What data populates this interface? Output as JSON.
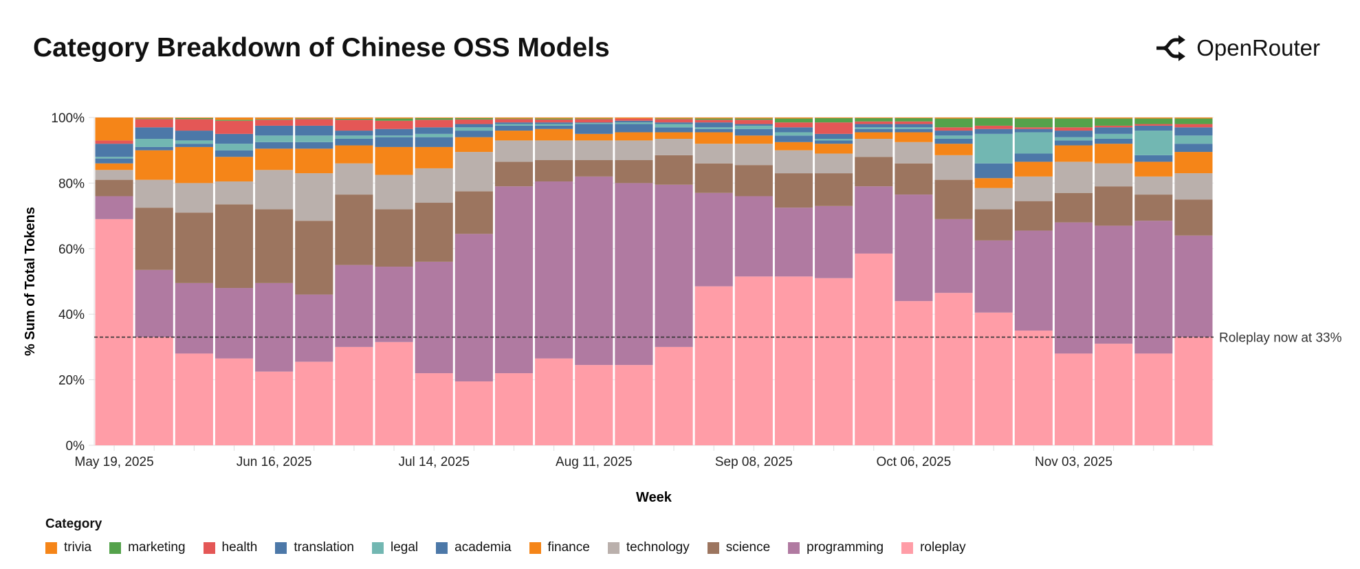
{
  "header": {
    "title": "Category Breakdown of Chinese OSS Models",
    "brand": "OpenRouter"
  },
  "chart_data": {
    "type": "bar",
    "stacked": "percent",
    "xlabel": "Week",
    "ylabel": "% Sum of Total Tokens",
    "ylim": [
      0,
      100
    ],
    "yticks": [
      "0%",
      "20%",
      "40%",
      "60%",
      "80%",
      "100%"
    ],
    "xtick_labels": [
      "May 19, 2025",
      "Jun 16, 2025",
      "Jul 14, 2025",
      "Aug 11, 2025",
      "Sep 08, 2025",
      "Oct 06, 2025",
      "Nov 03, 2025"
    ],
    "categories": [
      "2025-05-19",
      "2025-05-26",
      "2025-06-02",
      "2025-06-09",
      "2025-06-16",
      "2025-06-23",
      "2025-06-30",
      "2025-07-07",
      "2025-07-14",
      "2025-07-21",
      "2025-07-28",
      "2025-08-04",
      "2025-08-11",
      "2025-08-18",
      "2025-08-25",
      "2025-09-01",
      "2025-09-08",
      "2025-09-15",
      "2025-09-22",
      "2025-09-29",
      "2025-10-06",
      "2025-10-13",
      "2025-10-20",
      "2025-10-27",
      "2025-11-03",
      "2025-11-10",
      "2025-11-17",
      "2025-11-24"
    ],
    "legend_title": "Category",
    "legend_position": "bottom-left",
    "series": [
      {
        "name": "roleplay",
        "color": "#ff9da7",
        "values": [
          69,
          33,
          28,
          26.5,
          22.5,
          25.5,
          30,
          31.5,
          22,
          19.5,
          22,
          26.5,
          24.5,
          24.5,
          30,
          48.5,
          51.5,
          51.5,
          51,
          58.5,
          44,
          46.5,
          40.5,
          35,
          28,
          31,
          28,
          33
        ]
      },
      {
        "name": "programming",
        "color": "#b07aa1",
        "values": [
          7,
          20.5,
          21.5,
          21.5,
          27,
          20.5,
          25,
          23,
          34,
          45,
          57,
          54,
          57.5,
          55.5,
          49.5,
          28.5,
          24.5,
          21,
          22,
          20.5,
          32.5,
          22.5,
          22,
          30.5,
          40,
          36,
          40.5,
          31
        ]
      },
      {
        "name": "science",
        "color": "#9c755f",
        "values": [
          5,
          19,
          21.5,
          25.5,
          22.5,
          22.5,
          21.5,
          17.5,
          18,
          13,
          7.5,
          6.5,
          5,
          7,
          9,
          9,
          9.5,
          10.5,
          10,
          9,
          9.5,
          12,
          9.5,
          9,
          9,
          12,
          8,
          11
        ]
      },
      {
        "name": "technology",
        "color": "#bab0ac",
        "values": [
          3,
          8.5,
          9,
          7,
          12,
          14.5,
          9.5,
          10.5,
          10.5,
          12,
          6.5,
          6,
          6,
          6,
          5,
          6,
          6.5,
          7,
          6,
          5.5,
          6.5,
          7.5,
          6.5,
          7.5,
          9.5,
          7,
          5.5,
          8
        ]
      },
      {
        "name": "finance",
        "color": "#f58518",
        "values": [
          2,
          9,
          11,
          7.5,
          6.5,
          7.5,
          5.5,
          8.5,
          6.5,
          4.5,
          3,
          3.5,
          2,
          2.5,
          2,
          3.5,
          2.5,
          2.5,
          3,
          2,
          3,
          3.5,
          3,
          4.5,
          5,
          6,
          4.5,
          6.5
        ]
      },
      {
        "name": "academia",
        "color": "#4c78a8",
        "values": [
          1.5,
          1,
          1,
          2,
          2,
          2,
          2,
          3,
          3,
          2,
          1.5,
          1,
          3,
          2.5,
          1.5,
          1,
          2,
          2,
          1,
          1,
          1,
          1.5,
          4.5,
          2.5,
          1.5,
          1.5,
          2,
          2.5
        ]
      },
      {
        "name": "legal",
        "color": "#72b7b2",
        "values": [
          0.5,
          2.5,
          1,
          2,
          2,
          2,
          1,
          0.5,
          1,
          1,
          0.5,
          0.5,
          0.3,
          0.5,
          1,
          0.5,
          1,
          1,
          0.5,
          0.5,
          0.5,
          1,
          9,
          6.5,
          1,
          1.5,
          7.5,
          2.5
        ]
      },
      {
        "name": "translation",
        "color": "#4c78a8",
        "values": [
          4,
          3.5,
          3,
          3,
          3,
          3,
          1.5,
          2,
          2,
          1,
          0.5,
          0.5,
          0.2,
          0.5,
          0.5,
          1.5,
          0.5,
          1.5,
          1.5,
          1,
          1,
          1.5,
          1.5,
          1,
          2,
          2,
          1.5,
          2.5
        ]
      },
      {
        "name": "health",
        "color": "#e45756",
        "values": [
          1,
          2.5,
          3.5,
          4,
          1.8,
          2,
          3.3,
          2.5,
          2.3,
          1.4,
          1,
          0.9,
          1,
          0.7,
          1,
          0.8,
          1.3,
          1.5,
          3.5,
          0.8,
          0.8,
          1,
          1,
          0.5,
          1,
          0.5,
          0.5,
          1
        ]
      },
      {
        "name": "marketing",
        "color": "#54a24b",
        "values": [
          0,
          0.2,
          0.3,
          0.3,
          0.2,
          0.2,
          0.3,
          0.7,
          0.5,
          0.4,
          0.2,
          0.3,
          0.2,
          0,
          0.2,
          0.4,
          0.4,
          1.2,
          1.3,
          1,
          1,
          2.7,
          2.3,
          2.7,
          2.7,
          2.2,
          1.7,
          1.7
        ]
      },
      {
        "name": "trivia",
        "color": "#f58518",
        "values": [
          7,
          0.3,
          0.2,
          0.7,
          0.5,
          0.3,
          0.4,
          0.3,
          0.2,
          0.2,
          0.3,
          0.3,
          0.3,
          0.3,
          0.3,
          0.3,
          0.3,
          0.3,
          0.2,
          0.2,
          0.2,
          0.3,
          0.2,
          0.3,
          0.3,
          0.3,
          0.3,
          0.3
        ]
      }
    ],
    "reference_line": {
      "value": 33,
      "label": "Roleplay now at 33%"
    },
    "grid": true
  }
}
